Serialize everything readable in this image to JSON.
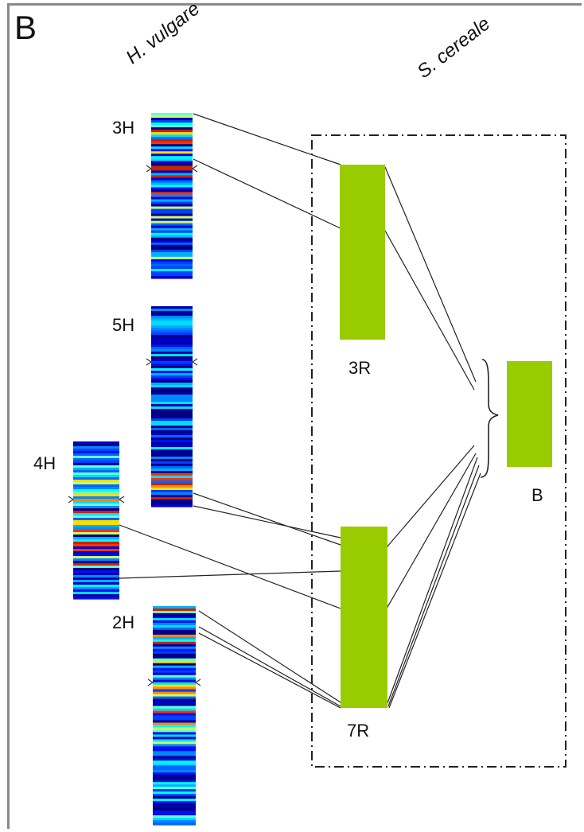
{
  "panel_label": "B",
  "species": {
    "left": "H. vulgare",
    "right": "S. cereale"
  },
  "barley_chromosomes": [
    {
      "label": "3H"
    },
    {
      "label": "5H"
    },
    {
      "label": "4H"
    },
    {
      "label": "2H"
    }
  ],
  "rye_blocks": [
    {
      "label": "3R"
    },
    {
      "label": "7R"
    },
    {
      "label": "B"
    }
  ],
  "colors": {
    "rye_block": "#99cc00",
    "dashdot_box": "#222222",
    "links": "#222222",
    "heat_low": "#00008b",
    "heat_mid": "#00ffff",
    "heat_high": "#ff3300"
  }
}
